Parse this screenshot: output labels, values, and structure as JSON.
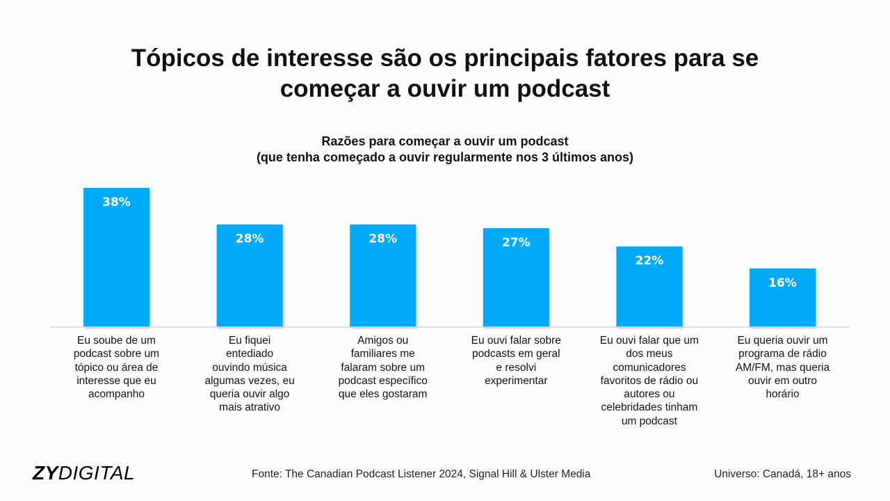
{
  "title": {
    "line1": "Tópicos de interesse são os principais fatores para se",
    "line2": "começar a ouvir um podcast"
  },
  "chart_data": {
    "type": "bar",
    "title": "Razões para começar a ouvir um podcast",
    "subtitle": "(que tenha começado a ouvir regularmente nos 3 últimos anos)",
    "categories": [
      [
        "Eu soube de um",
        "podcast sobre um",
        "tópico ou área de",
        "interesse que eu",
        "acompanho"
      ],
      [
        "Eu fiquei",
        "entediado",
        "ouvindo música",
        "algumas vezes, eu",
        "queria ouvir algo",
        "mais atrativo"
      ],
      [
        "Amigos ou",
        "familiares me",
        "falaram sobre um",
        "podcast específico",
        "que eles gostaram"
      ],
      [
        "Eu ouvi falar sobre",
        "podcasts em geral",
        "e resolvi",
        "experimentar"
      ],
      [
        "Eu ouvi falar que um",
        "dos meus",
        "comunicadores",
        "favoritos de rádio ou",
        "autores ou",
        "celebridades tinham",
        "um podcast"
      ],
      [
        "Eu queria ouvir um",
        "programa de rádio",
        "AM/FM, mas queria",
        "ouvir em outro",
        "horário"
      ]
    ],
    "values": [
      38,
      28,
      28,
      27,
      22,
      16
    ],
    "value_labels": [
      "38%",
      "28%",
      "28%",
      "27%",
      "22%",
      "16%"
    ],
    "ylim": [
      0,
      38
    ],
    "bar_color": "#05aaf7",
    "grid": false
  },
  "footer": {
    "logo_bold": "ZY",
    "logo_light": "DIGITAL",
    "source": "Fonte: The Canadian Podcast Listener 2024, Signal Hill & Ulster Media",
    "universe": "Universo: Canadá, 18+ anos"
  }
}
